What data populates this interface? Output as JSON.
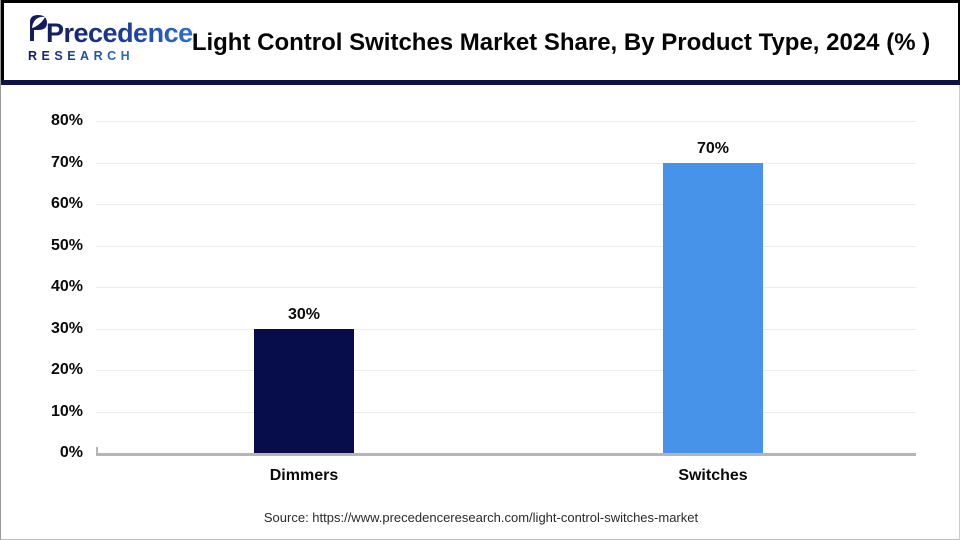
{
  "header": {
    "logo": {
      "name": "Precedence",
      "subtitle": "RESEARCH"
    },
    "title": "Light Control Switches Market Share, By Product Type, 2024 (% )"
  },
  "chart_data": {
    "type": "bar",
    "title": "Light Control Switches Market Share, By Product Type, 2024 (%)",
    "categories": [
      "Dimmers",
      "Switches"
    ],
    "values": [
      30,
      70
    ],
    "value_labels": [
      "30%",
      "70%"
    ],
    "bar_colors": [
      "#070d4a",
      "#4793ea"
    ],
    "ylim": [
      0,
      80
    ],
    "ytick_step": 10,
    "ytick_labels": [
      "0%",
      "10%",
      "20%",
      "30%",
      "40%",
      "50%",
      "60%",
      "70%",
      "80%"
    ],
    "xlabel": "",
    "ylabel": "",
    "grid": true,
    "legend": "none"
  },
  "footer": {
    "source": "Source: https://www.precedenceresearch.com/light-control-switches-market"
  },
  "colors": {
    "header_rule": "#0e1245",
    "dimmers_bar": "#070d4a",
    "switches_bar": "#4793ea",
    "gridline": "#ececec",
    "axis": "#b5b5b5"
  }
}
